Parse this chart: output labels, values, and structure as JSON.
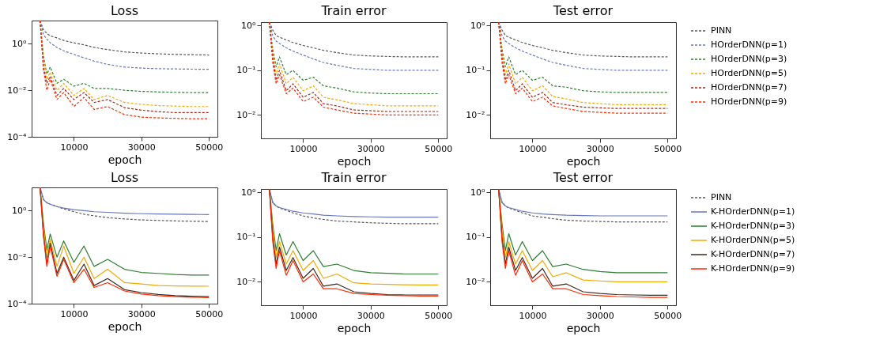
{
  "chart_data": [
    {
      "type": "line",
      "title": "Loss",
      "xlabel": "epoch",
      "x": [
        0,
        1000,
        2000,
        3000,
        5000,
        7000,
        10000,
        13000,
        16000,
        20000,
        25000,
        30000,
        35000,
        40000,
        45000,
        50000
      ],
      "xlim": [
        -2500,
        52500
      ],
      "xticks": [
        10000,
        30000,
        50000
      ],
      "ylim": [
        0.0001,
        10
      ],
      "yticks": [
        {
          "value": 1,
          "label": "10⁰"
        },
        {
          "value": 0.01,
          "label": "10⁻²"
        },
        {
          "value": 0.0001,
          "label": "10⁻⁴"
        }
      ],
      "log": true,
      "legend": false,
      "series": [
        {
          "color": "#555555",
          "line_style": "dashed",
          "values": [
            10,
            4,
            2.8,
            2.2,
            1.8,
            1.4,
            1.1,
            0.9,
            0.7,
            0.56,
            0.45,
            0.4,
            0.37,
            0.35,
            0.34,
            0.33
          ]
        },
        {
          "color": "#6677bb",
          "line_style": "dashed",
          "values": [
            10,
            2.5,
            1.6,
            1.1,
            0.7,
            0.5,
            0.35,
            0.25,
            0.18,
            0.13,
            0.1,
            0.09,
            0.085,
            0.083,
            0.081,
            0.08
          ]
        },
        {
          "color": "#2e7d32",
          "line_style": "dashed",
          "values": [
            10,
            0.3,
            0.05,
            0.1,
            0.02,
            0.03,
            0.015,
            0.02,
            0.012,
            0.012,
            0.01,
            0.009,
            0.0085,
            0.0082,
            0.008,
            0.008
          ]
        },
        {
          "color": "#f2a900",
          "line_style": "dashed",
          "values": [
            10,
            0.2,
            0.03,
            0.06,
            0.01,
            0.02,
            0.006,
            0.012,
            0.004,
            0.006,
            0.003,
            0.0025,
            0.0022,
            0.0021,
            0.002,
            0.002
          ]
        },
        {
          "color": "#a0281a",
          "line_style": "dashed",
          "values": [
            10,
            0.1,
            0.02,
            0.04,
            0.006,
            0.012,
            0.004,
            0.008,
            0.003,
            0.004,
            0.0018,
            0.0014,
            0.0012,
            0.0011,
            0.0011,
            0.0011
          ]
        },
        {
          "color": "#ff2a00",
          "line_style": "dashed",
          "values": [
            10,
            0.08,
            0.01,
            0.03,
            0.004,
            0.008,
            0.002,
            0.005,
            0.0015,
            0.002,
            0.0009,
            0.0007,
            0.00065,
            0.00062,
            0.0006,
            0.0006
          ]
        }
      ]
    },
    {
      "type": "line",
      "title": "Train error",
      "xlabel": "epoch",
      "x": [
        0,
        1000,
        2000,
        3000,
        5000,
        7000,
        10000,
        13000,
        16000,
        20000,
        25000,
        30000,
        35000,
        40000,
        45000,
        50000
      ],
      "xlim": [
        -2500,
        52500
      ],
      "xticks": [
        10000,
        30000,
        50000
      ],
      "ylim": [
        0.003,
        1.2
      ],
      "yticks": [
        {
          "value": 1,
          "label": "10⁰"
        },
        {
          "value": 0.1,
          "label": "10⁻¹"
        },
        {
          "value": 0.01,
          "label": "10⁻²"
        }
      ],
      "log": true,
      "legend": false,
      "series": [
        {
          "color": "#555555",
          "line_style": "dashed",
          "values": [
            1.2,
            0.8,
            0.6,
            0.55,
            0.48,
            0.42,
            0.36,
            0.32,
            0.28,
            0.25,
            0.22,
            0.21,
            0.205,
            0.2,
            0.2,
            0.2
          ]
        },
        {
          "color": "#6677bb",
          "line_style": "dashed",
          "values": [
            1.2,
            0.6,
            0.45,
            0.4,
            0.32,
            0.27,
            0.22,
            0.18,
            0.15,
            0.13,
            0.11,
            0.105,
            0.1,
            0.1,
            0.1,
            0.1
          ]
        },
        {
          "color": "#2e7d32",
          "line_style": "dashed",
          "values": [
            1.2,
            0.3,
            0.12,
            0.2,
            0.08,
            0.1,
            0.06,
            0.07,
            0.045,
            0.04,
            0.033,
            0.031,
            0.03,
            0.03,
            0.03,
            0.03
          ]
        },
        {
          "color": "#f2a900",
          "line_style": "dashed",
          "values": [
            1.2,
            0.25,
            0.08,
            0.14,
            0.05,
            0.07,
            0.035,
            0.045,
            0.025,
            0.022,
            0.018,
            0.017,
            0.016,
            0.016,
            0.016,
            0.016
          ]
        },
        {
          "color": "#a0281a",
          "line_style": "dashed",
          "values": [
            1.2,
            0.2,
            0.06,
            0.1,
            0.035,
            0.05,
            0.025,
            0.032,
            0.018,
            0.016,
            0.013,
            0.0125,
            0.012,
            0.012,
            0.012,
            0.012
          ]
        },
        {
          "color": "#ff2a00",
          "line_style": "dashed",
          "values": [
            1.2,
            0.15,
            0.05,
            0.08,
            0.03,
            0.04,
            0.02,
            0.025,
            0.015,
            0.013,
            0.011,
            0.0105,
            0.01,
            0.01,
            0.01,
            0.01
          ]
        }
      ]
    },
    {
      "type": "line",
      "title": "Test error",
      "xlabel": "epoch",
      "x": [
        0,
        1000,
        2000,
        3000,
        5000,
        7000,
        10000,
        13000,
        16000,
        20000,
        25000,
        30000,
        35000,
        40000,
        45000,
        50000
      ],
      "xlim": [
        -2500,
        52500
      ],
      "xticks": [
        10000,
        30000,
        50000
      ],
      "ylim": [
        0.003,
        1.2
      ],
      "yticks": [
        {
          "value": 1,
          "label": "10⁰"
        },
        {
          "value": 0.1,
          "label": "10⁻¹"
        },
        {
          "value": 0.01,
          "label": "10⁻²"
        }
      ],
      "log": true,
      "legend": "right",
      "series": [
        {
          "name": "PINN",
          "color": "#555555",
          "line_style": "dashed",
          "values": [
            1.2,
            0.8,
            0.6,
            0.55,
            0.48,
            0.42,
            0.36,
            0.32,
            0.28,
            0.25,
            0.22,
            0.21,
            0.205,
            0.2,
            0.2,
            0.2
          ]
        },
        {
          "name": "HOrderDNN(p=1)",
          "color": "#6677bb",
          "line_style": "dashed",
          "values": [
            1.2,
            0.6,
            0.45,
            0.4,
            0.32,
            0.27,
            0.22,
            0.18,
            0.15,
            0.13,
            0.11,
            0.105,
            0.1,
            0.1,
            0.1,
            0.1
          ]
        },
        {
          "name": "HOrderDNN(p=3)",
          "color": "#2e7d32",
          "line_style": "dashed",
          "values": [
            1.2,
            0.3,
            0.12,
            0.2,
            0.08,
            0.1,
            0.06,
            0.07,
            0.045,
            0.042,
            0.035,
            0.033,
            0.032,
            0.032,
            0.032,
            0.032
          ]
        },
        {
          "name": "HOrderDNN(p=5)",
          "color": "#f2a900",
          "line_style": "dashed",
          "values": [
            1.2,
            0.25,
            0.08,
            0.14,
            0.05,
            0.07,
            0.035,
            0.045,
            0.026,
            0.023,
            0.019,
            0.018,
            0.017,
            0.017,
            0.017,
            0.017
          ]
        },
        {
          "name": "HOrderDNN(p=7)",
          "color": "#a0281a",
          "line_style": "dashed",
          "values": [
            1.2,
            0.2,
            0.06,
            0.1,
            0.035,
            0.05,
            0.025,
            0.032,
            0.019,
            0.017,
            0.015,
            0.0145,
            0.014,
            0.014,
            0.014,
            0.014
          ]
        },
        {
          "name": "HOrderDNN(p=9)",
          "color": "#ff2a00",
          "line_style": "dashed",
          "values": [
            1.2,
            0.15,
            0.05,
            0.08,
            0.03,
            0.04,
            0.02,
            0.025,
            0.016,
            0.014,
            0.012,
            0.0115,
            0.011,
            0.011,
            0.011,
            0.011
          ]
        }
      ]
    },
    {
      "type": "line",
      "title": "Loss",
      "xlabel": "epoch",
      "x": [
        0,
        1000,
        2000,
        3000,
        5000,
        7000,
        10000,
        13000,
        16000,
        20000,
        25000,
        30000,
        35000,
        40000,
        45000,
        50000
      ],
      "xlim": [
        -2500,
        52500
      ],
      "xticks": [
        10000,
        30000,
        50000
      ],
      "ylim": [
        0.0001,
        10
      ],
      "yticks": [
        {
          "value": 1,
          "label": "10⁰"
        },
        {
          "value": 0.01,
          "label": "10⁻²"
        },
        {
          "value": 0.0001,
          "label": "10⁻⁴"
        }
      ],
      "log": true,
      "legend": false,
      "series": [
        {
          "color": "#555555",
          "line_style": "dashed",
          "values": [
            10,
            3,
            2.2,
            1.9,
            1.5,
            1.2,
            0.9,
            0.7,
            0.6,
            0.5,
            0.44,
            0.4,
            0.38,
            0.36,
            0.35,
            0.34
          ]
        },
        {
          "color": "#6677bb",
          "line_style": "solid",
          "values": [
            10,
            3,
            2.2,
            1.9,
            1.5,
            1.3,
            1.1,
            1.0,
            0.9,
            0.85,
            0.78,
            0.74,
            0.72,
            0.7,
            0.69,
            0.68
          ]
        },
        {
          "color": "#2e7d32",
          "line_style": "solid",
          "values": [
            10,
            0.3,
            0.02,
            0.1,
            0.01,
            0.05,
            0.006,
            0.03,
            0.004,
            0.008,
            0.003,
            0.0022,
            0.002,
            0.0018,
            0.0017,
            0.0017
          ]
        },
        {
          "color": "#f2a900",
          "line_style": "solid",
          "values": [
            10,
            0.2,
            0.01,
            0.06,
            0.004,
            0.03,
            0.002,
            0.01,
            0.0012,
            0.003,
            0.0008,
            0.0007,
            0.0006,
            0.00058,
            0.00057,
            0.00056
          ]
        },
        {
          "color": "#3a2a20",
          "line_style": "solid",
          "values": [
            10,
            0.1,
            0.005,
            0.04,
            0.002,
            0.01,
            0.001,
            0.005,
            0.0006,
            0.0012,
            0.0004,
            0.0003,
            0.00025,
            0.00022,
            0.00021,
            0.0002
          ]
        },
        {
          "color": "#ff2a00",
          "line_style": "solid",
          "values": [
            10,
            0.08,
            0.004,
            0.03,
            0.0015,
            0.008,
            0.0008,
            0.003,
            0.0005,
            0.0008,
            0.00035,
            0.00026,
            0.00022,
            0.0002,
            0.00019,
            0.00018
          ]
        }
      ]
    },
    {
      "type": "line",
      "title": "Train error",
      "xlabel": "epoch",
      "x": [
        0,
        1000,
        2000,
        3000,
        5000,
        7000,
        10000,
        13000,
        16000,
        20000,
        25000,
        30000,
        35000,
        40000,
        45000,
        50000
      ],
      "xlim": [
        -2500,
        52500
      ],
      "xticks": [
        10000,
        30000,
        50000
      ],
      "ylim": [
        0.003,
        1.2
      ],
      "yticks": [
        {
          "value": 1,
          "label": "10⁰"
        },
        {
          "value": 0.1,
          "label": "10⁻¹"
        },
        {
          "value": 0.01,
          "label": "10⁻²"
        }
      ],
      "log": true,
      "legend": false,
      "series": [
        {
          "color": "#555555",
          "line_style": "dashed",
          "values": [
            1.2,
            0.6,
            0.5,
            0.45,
            0.4,
            0.35,
            0.3,
            0.27,
            0.25,
            0.23,
            0.22,
            0.21,
            0.205,
            0.2,
            0.2,
            0.2
          ]
        },
        {
          "color": "#6677bb",
          "line_style": "solid",
          "values": [
            1.2,
            0.6,
            0.5,
            0.46,
            0.42,
            0.38,
            0.35,
            0.33,
            0.31,
            0.3,
            0.29,
            0.285,
            0.28,
            0.28,
            0.28,
            0.28
          ]
        },
        {
          "color": "#2e7d32",
          "line_style": "solid",
          "values": [
            1.2,
            0.2,
            0.05,
            0.12,
            0.04,
            0.08,
            0.03,
            0.05,
            0.022,
            0.025,
            0.018,
            0.016,
            0.0155,
            0.015,
            0.015,
            0.015
          ]
        },
        {
          "color": "#f2a900",
          "line_style": "solid",
          "values": [
            1.2,
            0.15,
            0.035,
            0.08,
            0.025,
            0.05,
            0.018,
            0.03,
            0.012,
            0.015,
            0.0095,
            0.009,
            0.0088,
            0.0086,
            0.0085,
            0.0085
          ]
        },
        {
          "color": "#3a2a20",
          "line_style": "solid",
          "values": [
            1.2,
            0.1,
            0.025,
            0.06,
            0.018,
            0.035,
            0.012,
            0.02,
            0.008,
            0.009,
            0.006,
            0.0055,
            0.0052,
            0.0051,
            0.0051,
            0.0051
          ]
        },
        {
          "color": "#ff2a00",
          "line_style": "solid",
          "values": [
            1.2,
            0.08,
            0.02,
            0.05,
            0.014,
            0.03,
            0.01,
            0.015,
            0.007,
            0.007,
            0.0055,
            0.0052,
            0.005,
            0.0049,
            0.0048,
            0.0048
          ]
        }
      ]
    },
    {
      "type": "line",
      "title": "Test error",
      "xlabel": "epoch",
      "x": [
        0,
        1000,
        2000,
        3000,
        5000,
        7000,
        10000,
        13000,
        16000,
        20000,
        25000,
        30000,
        35000,
        40000,
        45000,
        50000
      ],
      "xlim": [
        -2500,
        52500
      ],
      "xticks": [
        10000,
        30000,
        50000
      ],
      "ylim": [
        0.003,
        1.2
      ],
      "yticks": [
        {
          "value": 1,
          "label": "10⁰"
        },
        {
          "value": 0.1,
          "label": "10⁻¹"
        },
        {
          "value": 0.01,
          "label": "10⁻²"
        }
      ],
      "log": true,
      "legend": "right",
      "series": [
        {
          "name": "PINN",
          "color": "#555555",
          "line_style": "dashed",
          "values": [
            1.2,
            0.6,
            0.5,
            0.45,
            0.4,
            0.35,
            0.3,
            0.28,
            0.26,
            0.24,
            0.23,
            0.225,
            0.22,
            0.22,
            0.22,
            0.22
          ]
        },
        {
          "name": "K-HOrderDNN(p=1)",
          "color": "#6677bb",
          "line_style": "solid",
          "values": [
            1.2,
            0.6,
            0.5,
            0.46,
            0.42,
            0.38,
            0.35,
            0.33,
            0.32,
            0.31,
            0.305,
            0.3,
            0.3,
            0.3,
            0.3,
            0.3
          ]
        },
        {
          "name": "K-HOrderDNN(p=3)",
          "color": "#2e7d32",
          "line_style": "solid",
          "values": [
            1.2,
            0.2,
            0.05,
            0.12,
            0.04,
            0.08,
            0.03,
            0.05,
            0.022,
            0.025,
            0.019,
            0.017,
            0.016,
            0.016,
            0.016,
            0.016
          ]
        },
        {
          "name": "K-HOrderDNN(p=5)",
          "color": "#f2a900",
          "line_style": "solid",
          "values": [
            1.2,
            0.15,
            0.035,
            0.08,
            0.025,
            0.05,
            0.018,
            0.03,
            0.013,
            0.016,
            0.011,
            0.0105,
            0.01,
            0.01,
            0.01,
            0.01
          ]
        },
        {
          "name": "K-HOrderDNN(p=7)",
          "color": "#3a2a20",
          "line_style": "solid",
          "values": [
            1.2,
            0.1,
            0.025,
            0.06,
            0.018,
            0.035,
            0.012,
            0.02,
            0.008,
            0.009,
            0.006,
            0.0055,
            0.0052,
            0.0051,
            0.005,
            0.005
          ]
        },
        {
          "name": "K-HOrderDNN(p=9)",
          "color": "#ff2a00",
          "line_style": "solid",
          "values": [
            1.2,
            0.08,
            0.02,
            0.05,
            0.014,
            0.03,
            0.01,
            0.015,
            0.007,
            0.007,
            0.0052,
            0.0049,
            0.0047,
            0.0046,
            0.0045,
            0.0045
          ]
        }
      ]
    }
  ]
}
